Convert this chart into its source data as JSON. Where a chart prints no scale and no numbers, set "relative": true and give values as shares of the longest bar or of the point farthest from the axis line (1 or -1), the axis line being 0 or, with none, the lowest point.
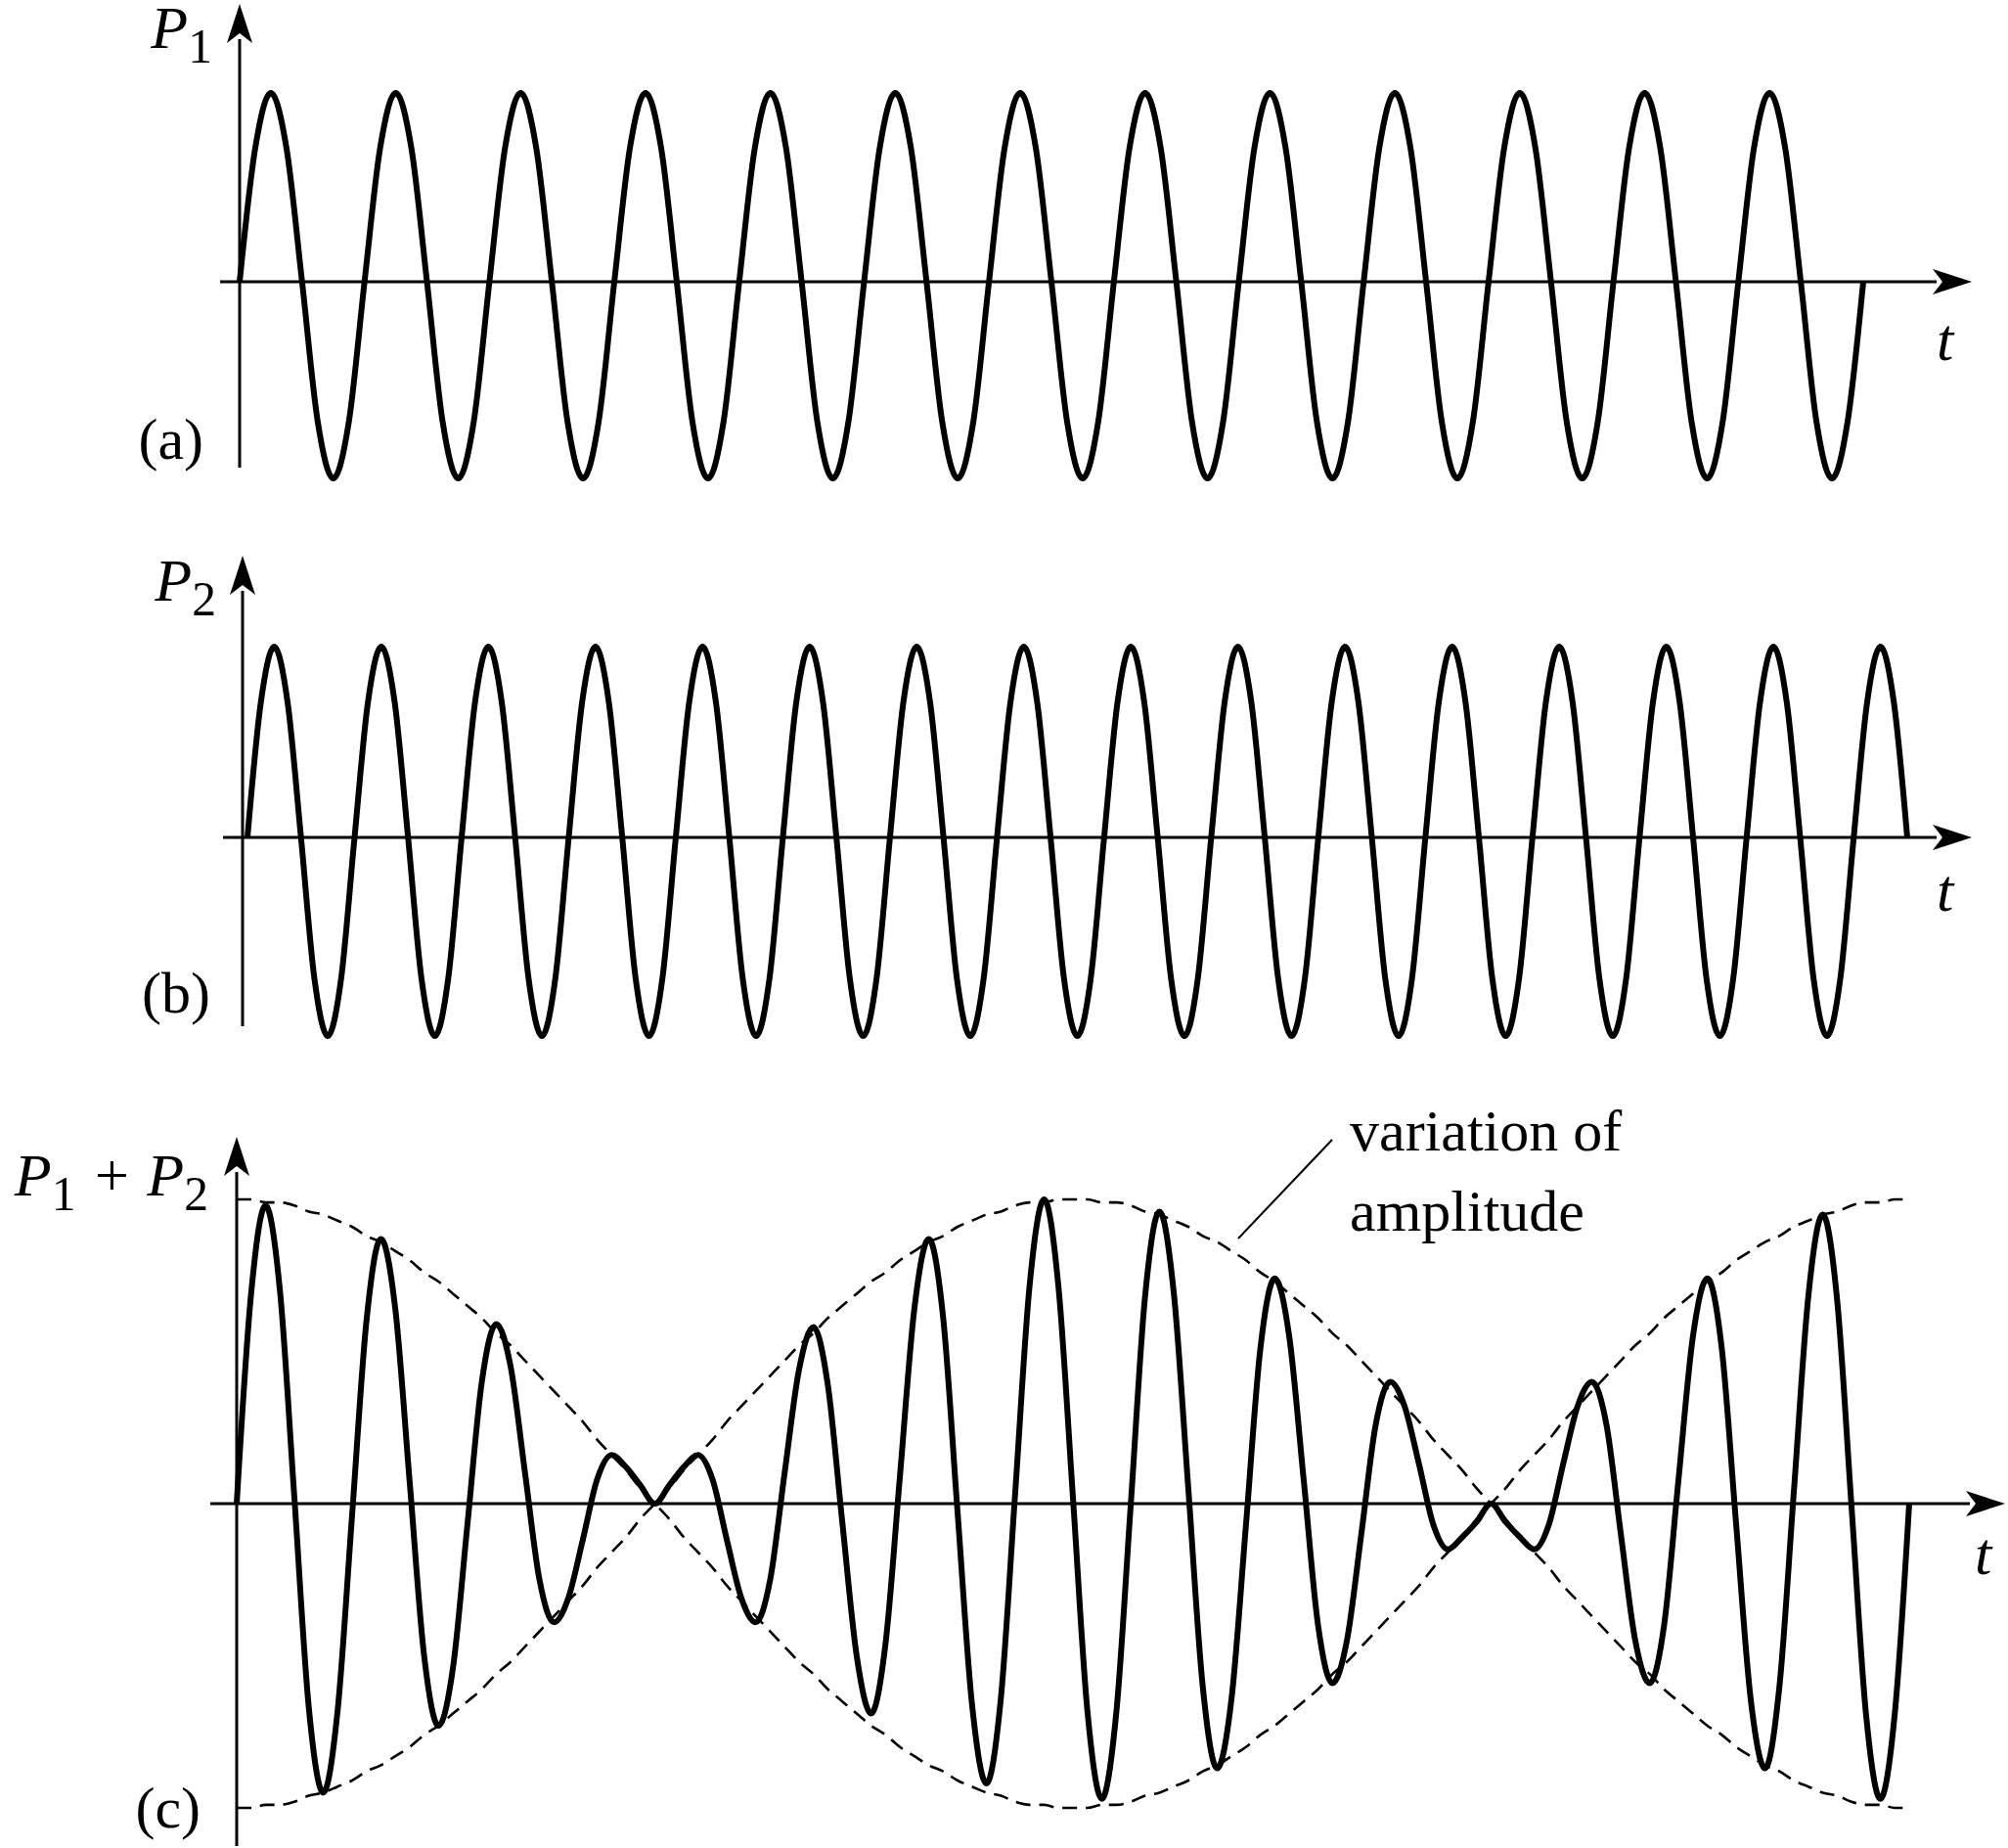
{
  "chart_data": [
    {
      "type": "line",
      "ylabel": "P$_{1}$",
      "xlabel": "t",
      "annotations": [
        "(a)"
      ],
      "relative": true,
      "categories": [
        null,
        null,
        null,
        null,
        null,
        null,
        null,
        null,
        null,
        null,
        null,
        null,
        null,
        null,
        null,
        null,
        null,
        null,
        null,
        null,
        null,
        null,
        null,
        null,
        null,
        null,
        null,
        null,
        null,
        null,
        null,
        null,
        null,
        null,
        null,
        null,
        null,
        null,
        null,
        null,
        null,
        null,
        null,
        null,
        null,
        null,
        null,
        null,
        null,
        null,
        null,
        null,
        null,
        null,
        null,
        null,
        null,
        null,
        null,
        null,
        null,
        null,
        null,
        null,
        null,
        null,
        null,
        null,
        null,
        null,
        null,
        null,
        null,
        null,
        null,
        null,
        null,
        null,
        null,
        null,
        null,
        null,
        null,
        null,
        null,
        null,
        null,
        null,
        null,
        null,
        null,
        null,
        null,
        null,
        null,
        null,
        null,
        null,
        null,
        null,
        null,
        null,
        null,
        null,
        null
      ],
      "series": [
        {
          "color": "#000000",
          "values": [
            0,
            0.68,
            0.96,
            0.68,
            0,
            -0.71,
            -1,
            -0.71,
            0,
            0.68,
            0.96,
            0.68,
            0,
            -0.71,
            -1,
            -0.71,
            0,
            0.68,
            0.96,
            0.68,
            0,
            -0.71,
            -1,
            -0.71,
            0,
            0.68,
            0.96,
            0.68,
            0,
            -0.71,
            -1,
            -0.71,
            0,
            0.68,
            0.96,
            0.68,
            0,
            -0.71,
            -1,
            -0.71,
            0,
            0.68,
            0.96,
            0.68,
            0,
            -0.71,
            -1,
            -0.71,
            0,
            0.68,
            0.96,
            0.68,
            0,
            -0.71,
            -1,
            -0.71,
            0,
            0.68,
            0.96,
            0.68,
            0,
            -0.71,
            -1,
            -0.71,
            0,
            0.68,
            0.96,
            0.68,
            0,
            -0.71,
            -1,
            -0.71,
            0,
            0.68,
            0.96,
            0.68,
            0,
            -0.71,
            -1,
            -0.71,
            0,
            0.68,
            0.96,
            0.68,
            0,
            -0.71,
            -1,
            -0.71,
            0,
            0.68,
            0.96,
            0.68,
            0,
            -0.71,
            -1,
            -0.71,
            0,
            0.68,
            0.96,
            0.68,
            0,
            -0.71,
            -1,
            -0.71,
            0
          ]
        }
      ]
    },
    {
      "type": "line",
      "ylabel": "P$_{2}$",
      "xlabel": "t",
      "annotations": [
        "(b)"
      ],
      "relative": true,
      "categories": [
        null,
        null,
        null,
        null,
        null,
        null,
        null,
        null,
        null,
        null,
        null,
        null,
        null,
        null,
        null,
        null,
        null,
        null,
        null,
        null,
        null,
        null,
        null,
        null,
        null,
        null,
        null,
        null,
        null,
        null,
        null,
        null,
        null,
        null,
        null,
        null,
        null,
        null,
        null,
        null,
        null,
        null,
        null,
        null,
        null,
        null,
        null,
        null,
        null,
        null,
        null,
        null,
        null,
        null,
        null,
        null,
        null,
        null,
        null,
        null,
        null,
        null,
        null,
        null,
        null,
        null,
        null,
        null,
        null,
        null,
        null,
        null,
        null,
        null,
        null,
        null,
        null,
        null,
        null,
        null,
        null,
        null,
        null,
        null,
        null,
        null,
        null,
        null,
        null,
        null,
        null,
        null,
        null,
        null,
        null,
        null,
        null,
        null,
        null,
        null,
        null,
        null,
        null,
        null,
        null,
        null,
        null,
        null,
        null,
        null,
        null,
        null,
        null,
        null,
        null,
        null,
        null,
        null,
        null,
        null,
        null,
        null,
        null,
        null,
        null
      ],
      "series": [
        {
          "color": "#000000",
          "values": [
            0,
            0.68,
            0.96,
            0.68,
            0,
            -0.71,
            -1,
            -0.71,
            0,
            0.68,
            0.96,
            0.68,
            0,
            -0.71,
            -1,
            -0.71,
            0,
            0.68,
            0.96,
            0.68,
            0,
            -0.71,
            -1,
            -0.71,
            0,
            0.68,
            0.96,
            0.68,
            0,
            -0.71,
            -1,
            -0.71,
            0,
            0.68,
            0.96,
            0.68,
            0,
            -0.71,
            -1,
            -0.71,
            0,
            0.68,
            0.96,
            0.68,
            0,
            -0.71,
            -1,
            -0.71,
            0,
            0.68,
            0.96,
            0.68,
            0,
            -0.71,
            -1,
            -0.71,
            0,
            0.68,
            0.96,
            0.68,
            0,
            -0.71,
            -1,
            -0.71,
            0,
            0.68,
            0.96,
            0.68,
            0,
            -0.71,
            -1,
            -0.71,
            0,
            0.68,
            0.96,
            0.68,
            0,
            -0.71,
            -1,
            -0.71,
            0,
            0.68,
            0.96,
            0.68,
            0,
            -0.71,
            -1,
            -0.71,
            0,
            0.68,
            0.96,
            0.68,
            0,
            -0.71,
            -1,
            -0.71,
            0,
            0.68,
            0.96,
            0.68,
            0,
            -0.71,
            -1,
            -0.71,
            0,
            0.68,
            0.96,
            0.68,
            0,
            -0.71,
            -1,
            -0.71,
            0,
            0.68,
            0.96,
            0.68,
            0,
            -0.71,
            -1,
            -0.71,
            0,
            0.68,
            0.96,
            0.68,
            0
          ]
        }
      ]
    },
    {
      "type": "line",
      "ylabel": "P$_{1}$ + P$_{2}$",
      "xlabel": "t",
      "annotations": [
        "(c)",
        "variation of amplitude"
      ],
      "relative": true,
      "categories": [
        null,
        null,
        null,
        null,
        null,
        null,
        null,
        null,
        null,
        null,
        null,
        null,
        null,
        null,
        null,
        null,
        null,
        null,
        null,
        null,
        null,
        null,
        null,
        null,
        null,
        null,
        null,
        null,
        null,
        null,
        null,
        null,
        null,
        null,
        null,
        null,
        null,
        null,
        null,
        null,
        null,
        null,
        null,
        null,
        null,
        null,
        null,
        null,
        null,
        null,
        null,
        null,
        null,
        null,
        null,
        null,
        null,
        null,
        null,
        null,
        null,
        null,
        null,
        null,
        null,
        null,
        null,
        null,
        null,
        null,
        null,
        null,
        null,
        null,
        null,
        null,
        null,
        null,
        null,
        null,
        null,
        null,
        null,
        null,
        null,
        null,
        null,
        null,
        null,
        null,
        null,
        null,
        null,
        null,
        null,
        null,
        null,
        null,
        null,
        null,
        null,
        null,
        null,
        null,
        null,
        null,
        null,
        null,
        null,
        null,
        null,
        null,
        null,
        null,
        null,
        null,
        null
      ],
      "series": [
        {
          "color": "#000000",
          "line_style": "dashed",
          "values": [
            1,
            1,
            0.99,
            0.99,
            0.98,
            0.96,
            0.95,
            0.93,
            0.91,
            0.88,
            0.86,
            0.83,
            0.8,
            0.76,
            0.73,
            0.69,
            0.65,
            0.61,
            0.56,
            0.52,
            0.47,
            0.42,
            0.37,
            0.32,
            0.27,
            0.21,
            0.16,
            0.11,
            0.05,
            0,
            -0.05,
            -0.11,
            -0.16,
            -0.21,
            -0.27,
            -0.32,
            -0.37,
            -0.42,
            -0.47,
            -0.52,
            -0.56,
            -0.61,
            -0.65,
            -0.69,
            -0.73,
            -0.76,
            -0.8,
            -0.83,
            -0.86,
            -0.88,
            -0.91,
            -0.93,
            -0.95,
            -0.96,
            -0.98,
            -0.99,
            -0.99,
            -1,
            -1,
            -1,
            -0.99,
            -0.99,
            -0.98,
            -0.96,
            -0.95,
            -0.93,
            -0.91,
            -0.88,
            -0.86,
            -0.83,
            -0.8,
            -0.76,
            -0.73,
            -0.69,
            -0.65,
            -0.61,
            -0.56,
            -0.52,
            -0.47,
            -0.42,
            -0.37,
            -0.32,
            -0.27,
            -0.21,
            -0.16,
            -0.11,
            -0.05,
            0,
            0.05,
            0.11,
            0.16,
            0.21,
            0.27,
            0.32,
            0.37,
            0.42,
            0.47,
            0.52,
            0.56,
            0.61,
            0.65,
            0.69,
            0.73,
            0.76,
            0.8,
            0.83,
            0.86,
            0.88,
            0.91,
            0.93,
            0.95,
            0.96,
            0.98,
            0.99,
            0.99,
            1,
            1
          ]
        },
        {
          "color": "#000000",
          "line_style": "dashed",
          "values": [
            -1,
            -1,
            -0.99,
            -0.99,
            -0.98,
            -0.96,
            -0.95,
            -0.93,
            -0.91,
            -0.88,
            -0.86,
            -0.83,
            -0.8,
            -0.76,
            -0.73,
            -0.69,
            -0.65,
            -0.61,
            -0.56,
            -0.52,
            -0.47,
            -0.42,
            -0.37,
            -0.32,
            -0.27,
            -0.21,
            -0.16,
            -0.11,
            -0.05,
            0,
            0.05,
            0.11,
            0.16,
            0.21,
            0.27,
            0.32,
            0.37,
            0.42,
            0.47,
            0.52,
            0.56,
            0.61,
            0.65,
            0.69,
            0.73,
            0.76,
            0.8,
            0.83,
            0.86,
            0.88,
            0.91,
            0.93,
            0.95,
            0.96,
            0.98,
            0.99,
            0.99,
            1,
            1,
            1,
            0.99,
            0.99,
            0.98,
            0.96,
            0.95,
            0.93,
            0.91,
            0.88,
            0.86,
            0.83,
            0.8,
            0.76,
            0.73,
            0.69,
            0.65,
            0.61,
            0.56,
            0.52,
            0.47,
            0.42,
            0.37,
            0.32,
            0.27,
            0.21,
            0.16,
            0.11,
            0.05,
            0,
            -0.05,
            -0.11,
            -0.16,
            -0.21,
            -0.27,
            -0.32,
            -0.37,
            -0.42,
            -0.47,
            -0.52,
            -0.56,
            -0.61,
            -0.65,
            -0.69,
            -0.73,
            -0.76,
            -0.8,
            -0.83,
            -0.86,
            -0.88,
            -0.91,
            -0.93,
            -0.95,
            -0.96,
            -0.98,
            -0.99,
            -0.99,
            -1,
            -1
          ]
        },
        {
          "color": "#000000",
          "values": [
            0,
            0.69,
            0.98,
            0.7,
            0.02,
            -0.67,
            -0.95,
            -0.68,
            -0.04,
            0.6,
            0.87,
            0.64,
            0.07,
            -0.5,
            -0.73,
            -0.54,
            -0.07,
            0.4,
            0.59,
            0.45,
            0.1,
            -0.25,
            -0.39,
            -0.31,
            -0.12,
            0.08,
            0.16,
            0.12,
            0.06,
            0,
            0.06,
            0.12,
            0.16,
            0.08,
            -0.12,
            -0.31,
            -0.39,
            -0.25,
            0.1,
            0.44,
            0.58,
            0.39,
            -0.06,
            -0.5,
            -0.69,
            -0.46,
            0.09,
            0.64,
            0.87,
            0.61,
            -0.03,
            -0.66,
            -0.92,
            -0.64,
            0.04,
            0.72,
            1,
            0.71,
            0.02,
            -0.68,
            -0.97,
            -0.69,
            -0.01,
            0.68,
            0.96,
            0.69,
            0.05,
            -0.6,
            -0.87,
            -0.64,
            -0.07,
            0.51,
            0.74,
            0.55,
            0.08,
            -0.4,
            -0.59,
            -0.45,
            -0.1,
            0.26,
            0.4,
            0.32,
            0.13,
            -0.07,
            -0.15,
            -0.11,
            -0.06,
            0,
            -0.06,
            -0.11,
            -0.15,
            -0.07,
            0.13,
            0.32,
            0.4,
            0.26,
            -0.1,
            -0.45,
            -0.59,
            -0.4,
            0.08,
            0.55,
            0.74,
            0.51,
            -0.07,
            -0.64,
            -0.87,
            -0.6,
            0.04,
            0.68,
            0.95,
            0.67,
            -0.01,
            -0.69,
            -0.97,
            -0.69,
            0
          ]
        }
      ]
    }
  ]
}
